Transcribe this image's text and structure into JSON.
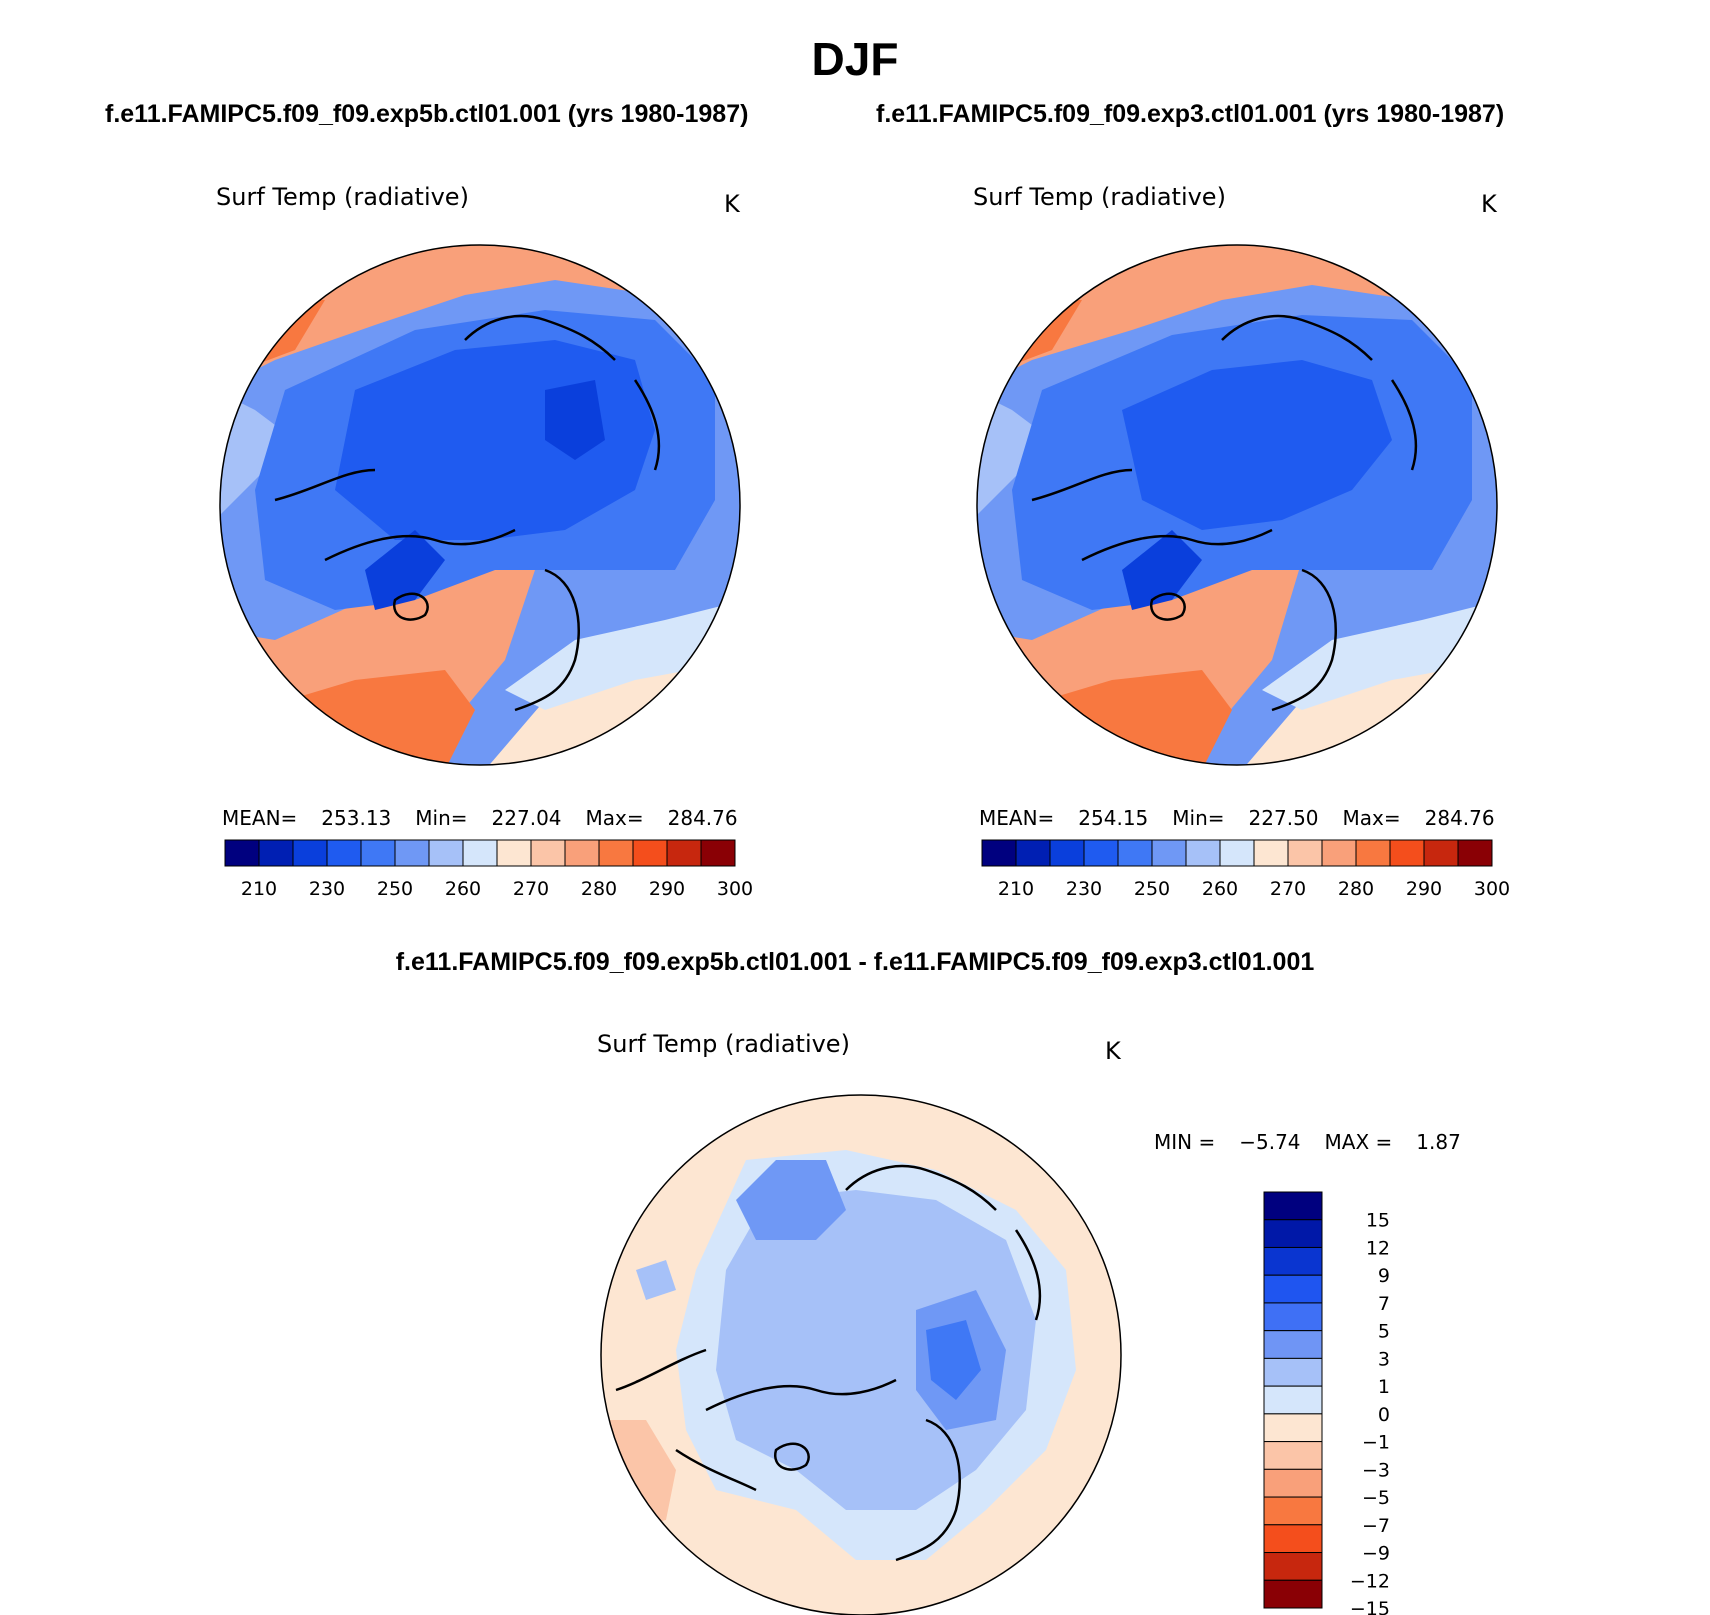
{
  "title": "DJF",
  "case1": "f.e11.FAMIPC5.f09_f09.exp5b.ctl01.001 (yrs 1980-1987)",
  "case2": "f.e11.FAMIPC5.f09_f09.exp3.ctl01.001 (yrs 1980-1987)",
  "diff_title": "f.e11.FAMIPC5.f09_f09.exp5b.ctl01.001 - f.e11.FAMIPC5.f09_f09.exp3.ctl01.001",
  "panels": [
    {
      "variable": "Surf Temp (radiative)",
      "units": "K",
      "mean_label": "MEAN=",
      "mean": "253.13",
      "min_label": "Min=",
      "min": "227.04",
      "max_label": "Max=",
      "max": "284.76"
    },
    {
      "variable": "Surf Temp (radiative)",
      "units": "K",
      "mean_label": "MEAN=",
      "mean": "254.15",
      "min_label": "Min=",
      "min": "227.50",
      "max_label": "Max=",
      "max": "284.76"
    },
    {
      "variable": "Surf Temp (radiative)",
      "units": "K",
      "min_label": "MIN =",
      "min": "−5.74",
      "max_label": "MAX =",
      "max": "1.87"
    }
  ],
  "colorbar_abs": {
    "colors": [
      "#00007f",
      "#001fb3",
      "#0a3fdc",
      "#1f5bf0",
      "#3f78f5",
      "#6f98f5",
      "#a6c1f8",
      "#d5e6fb",
      "#fde6d2",
      "#fbc5a8",
      "#f9a07a",
      "#f87840",
      "#f44e1c",
      "#c7270e",
      "#8a0005"
    ],
    "labels": [
      "210",
      "230",
      "250",
      "260",
      "270",
      "280",
      "290",
      "300"
    ]
  },
  "colorbar_diff": {
    "colors": [
      "#00007f",
      "#0018a8",
      "#0a35d0",
      "#1f55f0",
      "#3f70f5",
      "#6f95f5",
      "#a6c1f8",
      "#d5e6fb",
      "#fde6d2",
      "#fbc5a8",
      "#f9a07a",
      "#f87840",
      "#f44e1c",
      "#c7270e",
      "#8a0005"
    ],
    "labels": [
      "15",
      "12",
      "9",
      "7",
      "5",
      "3",
      "1",
      "0",
      "−1",
      "−3",
      "−5",
      "−7",
      "−9",
      "−12",
      "−15"
    ]
  },
  "palette": {
    "warm_strong": "#f87840",
    "warm": "#f9a07a",
    "warm_light": "#fbc5a8",
    "neutral_warm": "#fde6d2",
    "cool_pale": "#d5e6fb",
    "cool_light": "#a6c1f8",
    "cool": "#6f98f5",
    "cool_mid": "#3f78f5",
    "cool_deep": "#1f5bf0",
    "cool_darkest": "#0a3fdc"
  }
}
